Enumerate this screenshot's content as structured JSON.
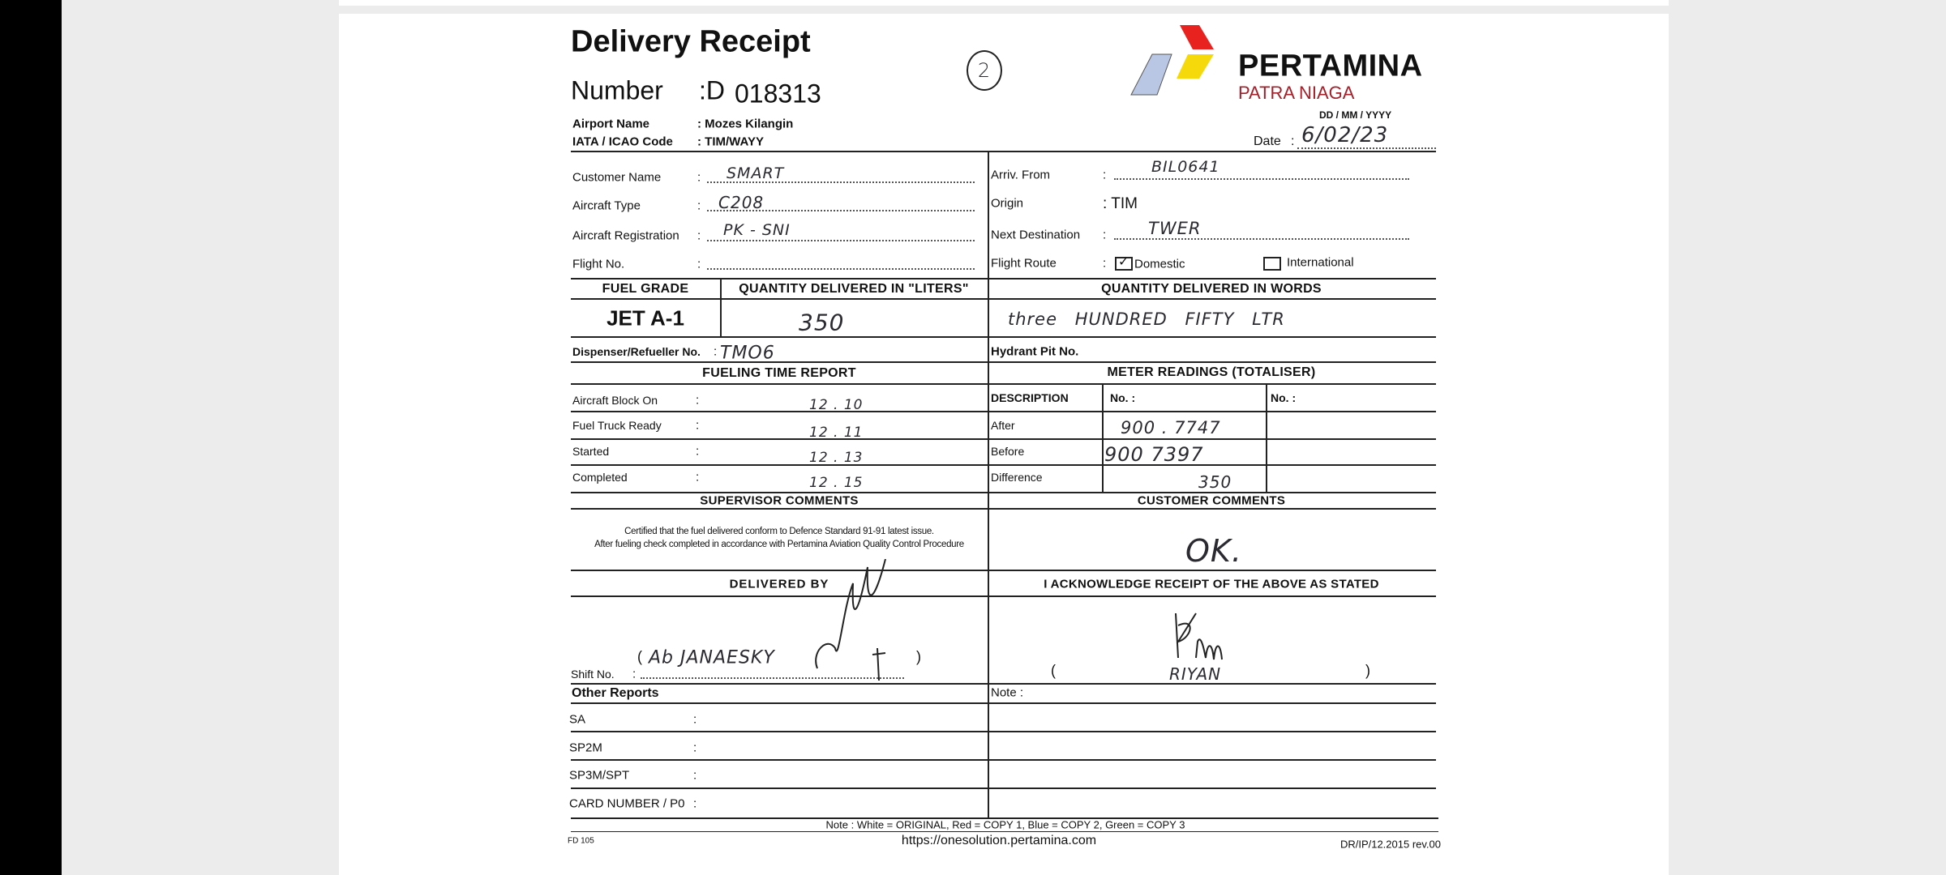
{
  "header": {
    "title": "Delivery Receipt",
    "number_label": "Number",
    "number_prefix": ":D",
    "number": "018313",
    "copy_mark": "2",
    "airport_label": "Airport Name",
    "airport_value": ": Mozes Kilangin",
    "iata_label": "IATA / ICAO Code",
    "iata_value": ": TIM/WAYY",
    "date_format": "DD  /  MM  /  YYYY",
    "date_label": "Date",
    "date_value": "6/02/23"
  },
  "logo": {
    "brand": "PERTAMINA",
    "sub": "PATRA NIAGA",
    "colors": {
      "red": "#e8231f",
      "yellow": "#f5d90a",
      "blue": "#b9c6e4",
      "sub": "#a31f2a"
    }
  },
  "flight": {
    "left": [
      {
        "label": "Customer Name",
        "value": "SMART"
      },
      {
        "label": "Aircraft Type",
        "value": "C208"
      },
      {
        "label": "Aircraft Registration",
        "value": "PK - SNI"
      },
      {
        "label": "Flight No.",
        "value": ""
      }
    ],
    "arriv_label": "Arriv. From",
    "arriv_value": "BIL0641",
    "origin_label": "Origin",
    "origin_value": ": TIM",
    "next_label": "Next Destination",
    "next_value": "TWER",
    "route_label": "Flight Route",
    "domestic": "Domestic",
    "international": "International",
    "domestic_checked": true
  },
  "fuel": {
    "grade_header": "FUEL GRADE",
    "liters_header": "QUANTITY DELIVERED IN \"LITERS\"",
    "words_header": "QUANTITY DELIVERED IN WORDS",
    "grade": "JET A-1",
    "liters": "350",
    "words": "three HUNDRED FIFTY LTR",
    "dispenser_label": "Dispenser/Refueller No.",
    "dispenser_value": "TMO6",
    "hydrant_label": "Hydrant Pit No."
  },
  "time_report": {
    "header": "FUELING TIME REPORT",
    "rows": [
      {
        "label": "Aircraft Block On",
        "value": "12 . 10"
      },
      {
        "label": "Fuel Truck Ready",
        "value": "12 . 11"
      },
      {
        "label": "Started",
        "value": "12 . 13"
      },
      {
        "label": "Completed",
        "value": "12 . 15"
      }
    ]
  },
  "meter": {
    "header": "METER READINGS (TOTALISER)",
    "desc_header": "DESCRIPTION",
    "no1": "No. :",
    "no2": "No. :",
    "rows": [
      {
        "label": "After",
        "value": "900 . 7747"
      },
      {
        "label": "Before",
        "value": "900 7397"
      },
      {
        "label": "Difference",
        "value": "350"
      }
    ]
  },
  "comments": {
    "supervisor_header": "SUPERVISOR  COMMENTS",
    "customer_header": "CUSTOMER  COMMENTS",
    "certified_1": "Certified that the fuel delivered conform to Defence Standard 91-91 latest issue.",
    "certified_2": "After fueling check completed in accordance with Pertamina Aviation Quality Control Procedure",
    "customer_value": "OK."
  },
  "signatures": {
    "delivered_header": "DELIVERED BY",
    "ack_header": "I ACKNOWLEDGE RECEIPT OF THE ABOVE AS STATED",
    "deliverer_name": "Ab JANAESKY",
    "receiver_name": "RIYAN",
    "shift_label": "Shift No.",
    "open": "(",
    "close": ")"
  },
  "other": {
    "header": "Other Reports",
    "note_label": "Note :",
    "rows": [
      "SA",
      "SP2M",
      "SP3M/SPT",
      "CARD NUMBER / P0"
    ]
  },
  "footer": {
    "copy_note": "Note :  White = ORIGINAL, Red = COPY 1,  Blue = COPY 2,  Green = COPY 3",
    "form_code": "FD 105",
    "url": "https://onesolution.pertamina.com",
    "revision": "DR/IP/12.2015 rev.00"
  }
}
